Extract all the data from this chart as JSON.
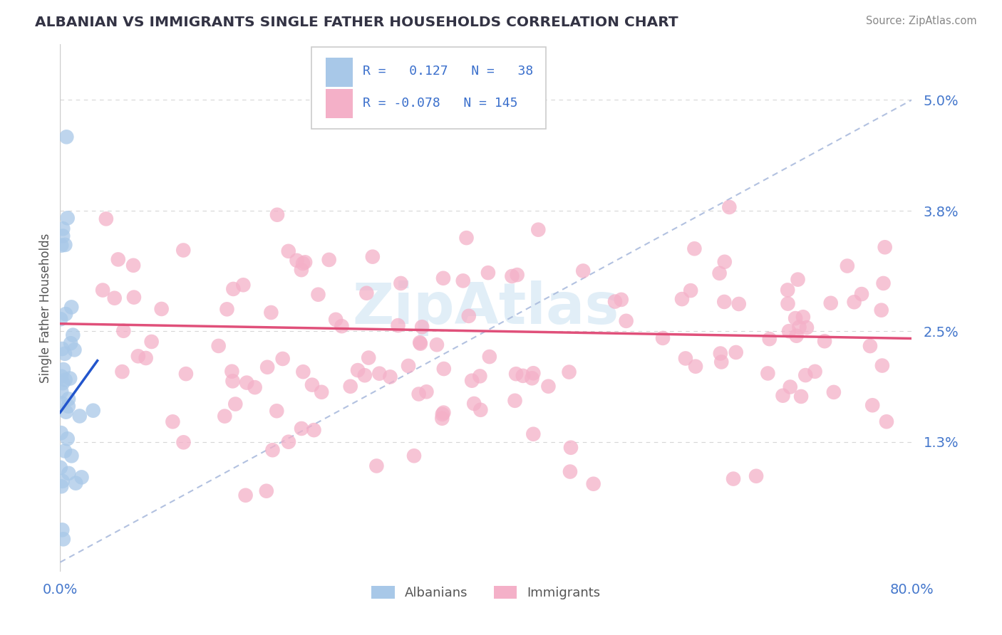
{
  "title": "ALBANIAN VS IMMIGRANTS SINGLE FATHER HOUSEHOLDS CORRELATION CHART",
  "source": "Source: ZipAtlas.com",
  "ylabel": "Single Father Households",
  "ytick_values": [
    0.0,
    1.3,
    2.5,
    3.8,
    5.0
  ],
  "ytick_labels": [
    "",
    "1.3%",
    "2.5%",
    "3.8%",
    "5.0%"
  ],
  "xlim": [
    0.0,
    80.0
  ],
  "ylim": [
    -0.1,
    5.6
  ],
  "albanian_color": "#a8c8e8",
  "immigrant_color": "#f4b0c8",
  "alb_trend_color": "#2255cc",
  "imm_trend_color": "#e0507a",
  "dash_line_color": "#aabbdd",
  "grid_line_color": "#cccccc",
  "background_color": "#ffffff",
  "title_color": "#333344",
  "source_color": "#888888",
  "tick_color": "#4477cc",
  "ylabel_color": "#555555",
  "watermark_color": "#d5e8f5",
  "legend_text_color": "#3a6fcc",
  "legend_border_color": "#cccccc",
  "bottom_legend_color": "#555555",
  "albanian_seed": 101,
  "immigrant_seed": 202
}
